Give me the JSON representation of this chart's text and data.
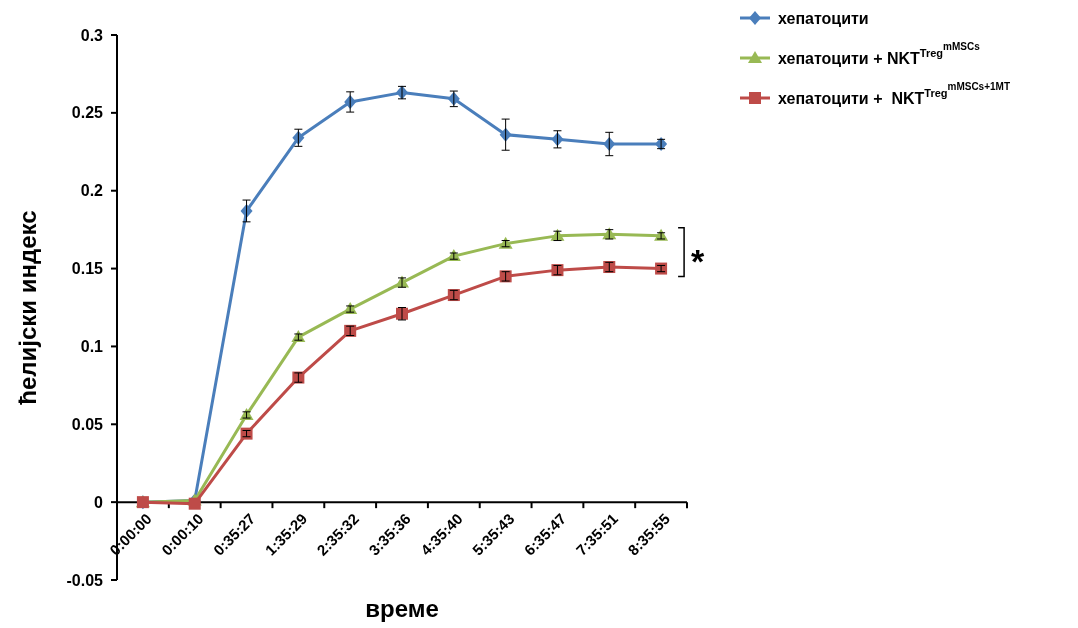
{
  "chart_data": {
    "type": "line",
    "xlabel": "време",
    "ylabel": "ћелијски индекс",
    "categories": [
      "0:00:00",
      "0:00:10",
      "0:35:27",
      "1:35:29",
      "2:35:32",
      "3:35:36",
      "4:35:40",
      "5:35:43",
      "6:35:47",
      "7:35:51",
      "8:35:55"
    ],
    "series": [
      {
        "name": "хепатоцити",
        "color": "#4a7ebb",
        "marker": "diamond",
        "values": [
          0,
          0.001,
          0.187,
          0.234,
          0.257,
          0.263,
          0.259,
          0.236,
          0.233,
          0.23,
          0.23
        ],
        "errors": [
          null,
          null,
          0.007,
          0.0055,
          0.0065,
          0.004,
          0.005,
          0.01,
          0.0055,
          0.0075,
          0.003
        ]
      },
      {
        "name": "хепатоцити + NKT$^{Treg}$$^{mMSCs}$",
        "color": "#98b954",
        "marker": "triangle",
        "values": [
          0,
          0.001,
          0.056,
          0.106,
          0.124,
          0.141,
          0.158,
          0.166,
          0.171,
          0.172,
          0.171
        ],
        "errors": [
          null,
          null,
          0.002,
          0.002,
          0.002,
          0.003,
          0.002,
          0.002,
          0.003,
          0.003,
          0.002
        ]
      },
      {
        "name": "хепатоцити +  NKT$^{Treg}$$^{mMSCs+1MT}$",
        "color": "#be4b48",
        "marker": "square",
        "values": [
          0,
          -0.001,
          0.044,
          0.08,
          0.11,
          0.121,
          0.133,
          0.145,
          0.149,
          0.151,
          0.15
        ],
        "errors": [
          null,
          null,
          0.002,
          0.003,
          0.003,
          0.004,
          0.003,
          0.003,
          0.003,
          0.003,
          0.002
        ]
      }
    ],
    "ylim": [
      -0.05,
      0.3
    ],
    "yticks": [
      -0.05,
      0,
      0.05,
      0.1,
      0.15,
      0.2,
      0.25,
      0.3
    ],
    "grid": false,
    "legend": "right",
    "line_style": "solid",
    "annotations": [
      "*"
    ]
  }
}
